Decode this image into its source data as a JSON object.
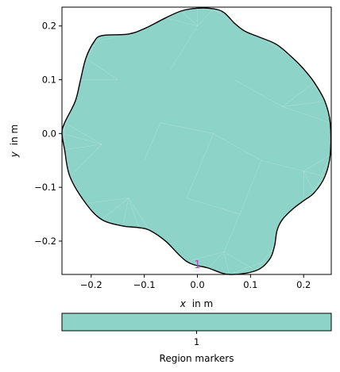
{
  "chart_data": {
    "type": "area",
    "title": "",
    "x_label": {
      "var": "x",
      "unit": "in m"
    },
    "y_label": {
      "var": "y",
      "unit": "in m"
    },
    "xlim": [
      -0.255,
      0.252
    ],
    "ylim": [
      -0.262,
      0.235
    ],
    "x_ticks": [
      {
        "value": -0.2,
        "label": "−0.2"
      },
      {
        "value": -0.1,
        "label": "−0.1"
      },
      {
        "value": 0.0,
        "label": "0.0"
      },
      {
        "value": 0.1,
        "label": "0.1"
      },
      {
        "value": 0.2,
        "label": "0.2"
      }
    ],
    "y_ticks": [
      {
        "value": -0.2,
        "label": "−0.2"
      },
      {
        "value": -0.1,
        "label": "−0.1"
      },
      {
        "value": 0.0,
        "label": "0.0"
      },
      {
        "value": 0.1,
        "label": "0.1"
      },
      {
        "value": 0.2,
        "label": "0.2"
      }
    ],
    "region_color": "#8dd3c7",
    "boundary_color": "#000000",
    "region": {
      "marker": "1",
      "marker_color": "#cc33cc",
      "marker_pos": [
        0.0,
        -0.245
      ],
      "boundary": [
        [
          0.0,
          0.233
        ],
        [
          0.03,
          0.232
        ],
        [
          0.05,
          0.225
        ],
        [
          0.07,
          0.205
        ],
        [
          0.09,
          0.19
        ],
        [
          0.12,
          0.178
        ],
        [
          0.15,
          0.165
        ],
        [
          0.18,
          0.14
        ],
        [
          0.2,
          0.12
        ],
        [
          0.22,
          0.095
        ],
        [
          0.24,
          0.06
        ],
        [
          0.25,
          0.02
        ],
        [
          0.25,
          -0.04
        ],
        [
          0.24,
          -0.08
        ],
        [
          0.22,
          -0.11
        ],
        [
          0.2,
          -0.125
        ],
        [
          0.18,
          -0.14
        ],
        [
          0.16,
          -0.16
        ],
        [
          0.15,
          -0.18
        ],
        [
          0.145,
          -0.21
        ],
        [
          0.135,
          -0.235
        ],
        [
          0.11,
          -0.255
        ],
        [
          0.06,
          -0.262
        ],
        [
          0.02,
          -0.25
        ],
        [
          -0.02,
          -0.238
        ],
        [
          -0.06,
          -0.2
        ],
        [
          -0.09,
          -0.18
        ],
        [
          -0.11,
          -0.175
        ],
        [
          -0.14,
          -0.172
        ],
        [
          -0.18,
          -0.16
        ],
        [
          -0.21,
          -0.13
        ],
        [
          -0.24,
          -0.08
        ],
        [
          -0.25,
          -0.03
        ],
        [
          -0.255,
          0.0
        ],
        [
          -0.25,
          0.02
        ],
        [
          -0.23,
          0.06
        ],
        [
          -0.22,
          0.1
        ],
        [
          -0.21,
          0.14
        ],
        [
          -0.195,
          0.17
        ],
        [
          -0.18,
          0.182
        ],
        [
          -0.13,
          0.185
        ],
        [
          -0.1,
          0.195
        ],
        [
          -0.06,
          0.215
        ],
        [
          -0.03,
          0.228
        ]
      ]
    },
    "colorbar": {
      "label": "Region markers",
      "ticks": [
        "1"
      ],
      "color": "#8dd3c7",
      "orientation": "horizontal"
    }
  }
}
